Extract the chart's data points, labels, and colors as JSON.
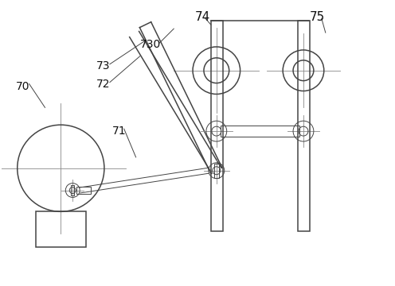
{
  "bg_color": "#ffffff",
  "line_color": "#444444",
  "cl_color": "#888888",
  "figsize": [
    4.96,
    3.6
  ],
  "dpi": 100,
  "lw_main": 1.1,
  "lw_thin": 0.7,
  "lw_cl": 0.6
}
